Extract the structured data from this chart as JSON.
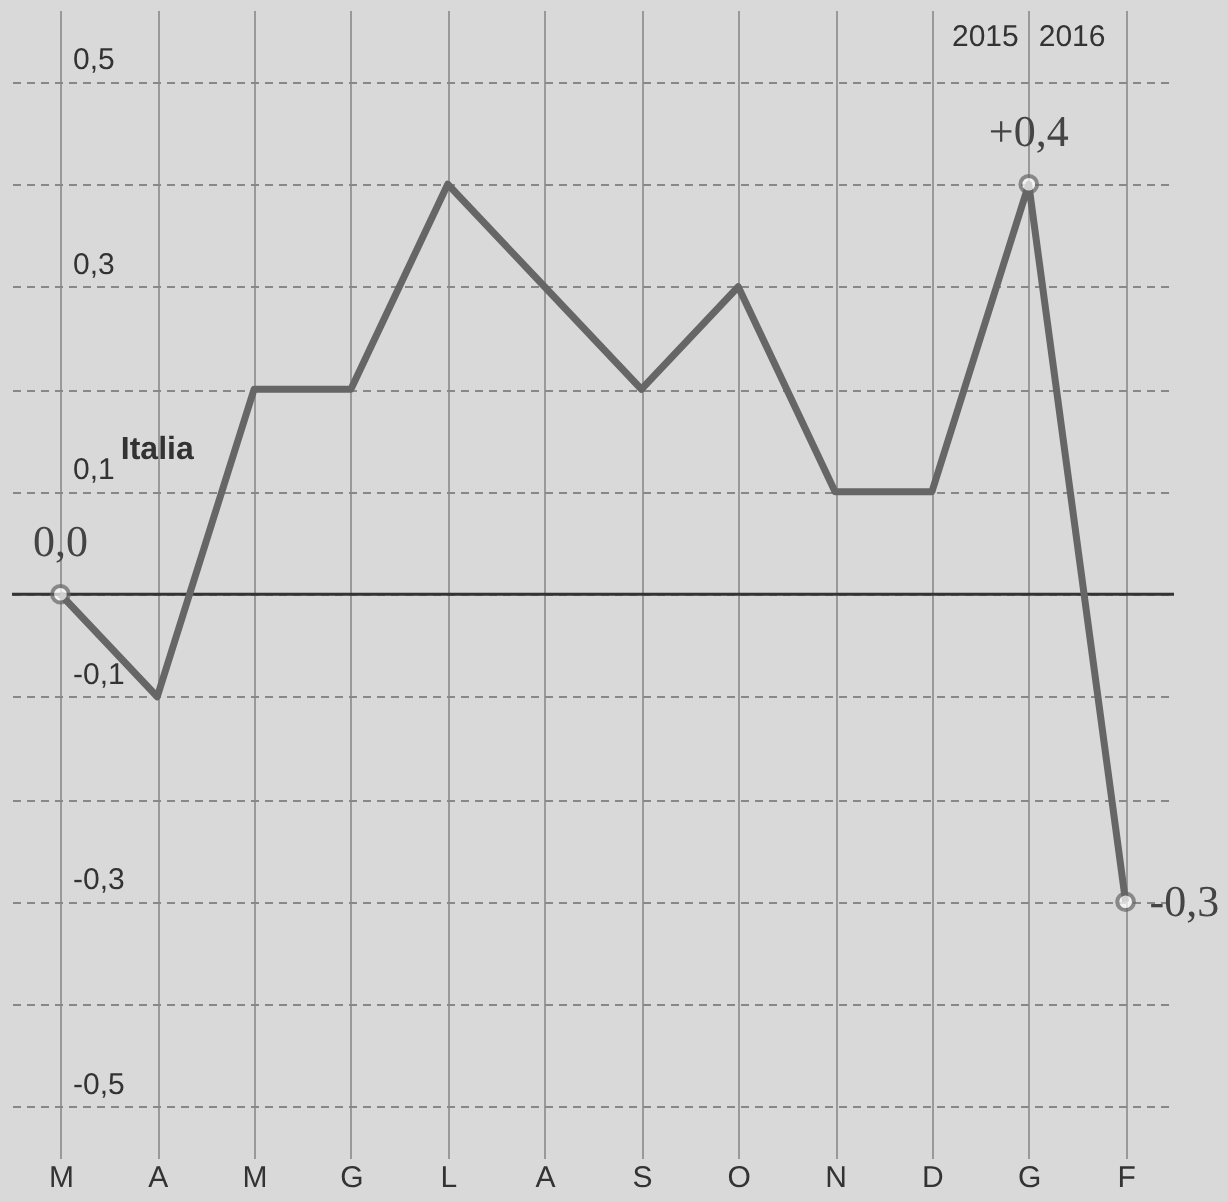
{
  "chart_data": {
    "type": "line",
    "categories": [
      "M",
      "A",
      "M",
      "G",
      "L",
      "A",
      "S",
      "O",
      "N",
      "D",
      "G",
      "F"
    ],
    "series": [
      {
        "name": "Italia",
        "color": "#666666",
        "values": [
          0.0,
          -0.1,
          0.2,
          0.2,
          0.4,
          0.3,
          0.2,
          0.3,
          0.1,
          0.1,
          0.4,
          -0.3
        ],
        "value_labels": [
          "0,0",
          null,
          null,
          null,
          null,
          null,
          null,
          null,
          null,
          null,
          "+0,4",
          "-0,3"
        ]
      }
    ],
    "ylim": [
      -0.55,
      0.57
    ],
    "yticks": [
      {
        "value": -0.5,
        "label": "-0,5"
      },
      {
        "value": -0.4,
        "label": null
      },
      {
        "value": -0.3,
        "label": "-0,3"
      },
      {
        "value": -0.2,
        "label": null
      },
      {
        "value": -0.1,
        "label": "-0,1"
      },
      {
        "value": 0,
        "label": null
      },
      {
        "value": 0.1,
        "label": "0,1"
      },
      {
        "value": 0.2,
        "label": null
      },
      {
        "value": 0.3,
        "label": "0,3"
      },
      {
        "value": 0.4,
        "label": null
      },
      {
        "value": 0.5,
        "label": "0,5"
      }
    ],
    "grid": true,
    "legend": false,
    "ref_lines": [
      {
        "axis": "y",
        "value": 0,
        "color": "#333333",
        "line_style": "solid"
      }
    ],
    "annotations": [
      "2015",
      "2016"
    ]
  }
}
